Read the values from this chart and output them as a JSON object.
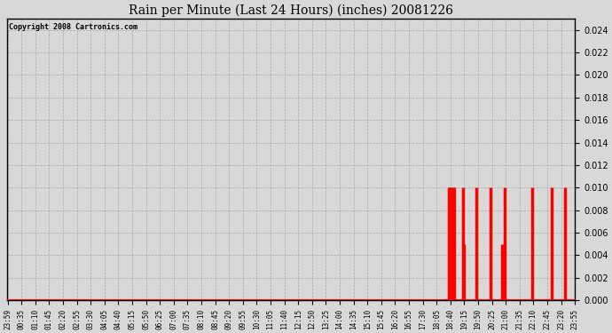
{
  "title": "Rain per Minute (Last 24 Hours) (inches) 20081226",
  "copyright": "Copyright 2008 Cartronics.com",
  "bar_color": "#ff0000",
  "baseline_color": "#ff0000",
  "background_color": "#d8d8d8",
  "plot_bg_color": "#d8d8d8",
  "grid_color": "#aaaaaa",
  "ylim": [
    0.0,
    0.025
  ],
  "yticks": [
    0.0,
    0.002,
    0.004,
    0.006,
    0.008,
    0.01,
    0.012,
    0.014,
    0.016,
    0.018,
    0.02,
    0.022,
    0.024
  ],
  "x_labels": [
    "23:59",
    "00:35",
    "01:10",
    "01:45",
    "02:20",
    "02:55",
    "03:30",
    "04:05",
    "04:40",
    "05:15",
    "05:50",
    "06:25",
    "07:00",
    "07:35",
    "08:10",
    "08:45",
    "09:20",
    "09:55",
    "10:30",
    "11:05",
    "11:40",
    "12:15",
    "12:50",
    "13:25",
    "14:00",
    "14:35",
    "15:10",
    "15:45",
    "16:20",
    "16:55",
    "17:30",
    "18:05",
    "18:40",
    "19:15",
    "19:50",
    "20:25",
    "21:00",
    "21:35",
    "22:10",
    "22:45",
    "23:20",
    "23:55"
  ],
  "n_points": 1440,
  "rain_events": [
    {
      "minute": 1120,
      "value": 0.01
    },
    {
      "minute": 1122,
      "value": 0.01
    },
    {
      "minute": 1124,
      "value": 0.01
    },
    {
      "minute": 1126,
      "value": 0.005
    },
    {
      "minute": 1128,
      "value": 0.005
    },
    {
      "minute": 1130,
      "value": 0.01
    },
    {
      "minute": 1132,
      "value": 0.01
    },
    {
      "minute": 1155,
      "value": 0.01
    },
    {
      "minute": 1158,
      "value": 0.005
    },
    {
      "minute": 1190,
      "value": 0.01
    },
    {
      "minute": 1225,
      "value": 0.01
    },
    {
      "minute": 1255,
      "value": 0.005
    },
    {
      "minute": 1260,
      "value": 0.01
    },
    {
      "minute": 1330,
      "value": 0.01
    },
    {
      "minute": 1380,
      "value": 0.01
    },
    {
      "minute": 1415,
      "value": 0.01
    }
  ]
}
